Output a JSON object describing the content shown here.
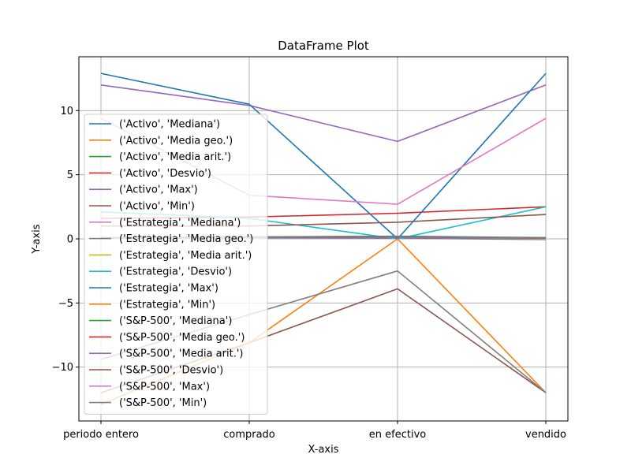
{
  "chart_data": {
    "type": "line",
    "title": "DataFrame Plot",
    "xlabel": "X-axis",
    "ylabel": "Y-axis",
    "categories": [
      "periodo entero",
      "comprado",
      "en efectivo",
      "vendido"
    ],
    "ylim": [
      -14.2,
      14.2
    ],
    "yticks": [
      -10,
      -5,
      0,
      5,
      10
    ],
    "ytick_labels": [
      "−10",
      "−5",
      "0",
      "5",
      "10"
    ],
    "grid": true,
    "legend_position": "center-left",
    "series": [
      {
        "name": "('Activo', 'Mediana')",
        "color": "#1f77b4",
        "values": [
          0.1,
          0.1,
          0.1,
          0.1
        ]
      },
      {
        "name": "('Activo', 'Media geo.')",
        "color": "#ff7f0e",
        "values": [
          0.05,
          0.1,
          0.1,
          0.0
        ]
      },
      {
        "name": "('Activo', 'Media arit.')",
        "color": "#2ca02c",
        "values": [
          0.1,
          0.15,
          0.15,
          0.05
        ]
      },
      {
        "name": "('Activo', 'Desvio')",
        "color": "#d62728",
        "values": [
          1.6,
          1.7,
          2.0,
          2.5
        ]
      },
      {
        "name": "('Activo', 'Max')",
        "color": "#9467bd",
        "values": [
          12.0,
          10.4,
          7.6,
          12.0
        ]
      },
      {
        "name": "('Activo', 'Min')",
        "color": "#8c564b",
        "values": [
          -12.0,
          -8.1,
          -3.9,
          -12.0
        ]
      },
      {
        "name": "('Estrategia', 'Mediana')",
        "color": "#e377c2",
        "values": [
          0.1,
          0.1,
          0.1,
          0.0
        ]
      },
      {
        "name": "('Estrategia', 'Media geo.')",
        "color": "#7f7f7f",
        "values": [
          0.05,
          0.1,
          0.05,
          -0.05
        ]
      },
      {
        "name": "('Estrategia', 'Media arit.')",
        "color": "#bcbd22",
        "values": [
          0.1,
          0.15,
          0.2,
          0.0
        ]
      },
      {
        "name": "('Estrategia', 'Desvio')",
        "color": "#17becf",
        "values": [
          2.1,
          1.6,
          0.0,
          2.5
        ]
      },
      {
        "name": "('Estrategia', 'Max')",
        "color": "#1f77b4",
        "values": [
          12.9,
          10.5,
          0.0,
          12.9
        ]
      },
      {
        "name": "('Estrategia', 'Min')",
        "color": "#ff7f0e",
        "values": [
          -12.9,
          -8.1,
          0.0,
          -12.0
        ]
      },
      {
        "name": "('S&P-500', 'Mediana')",
        "color": "#2ca02c",
        "values": [
          0.1,
          0.15,
          0.2,
          0.1
        ]
      },
      {
        "name": "('S&P-500', 'Media geo.')",
        "color": "#d62728",
        "values": [
          0.05,
          0.1,
          0.15,
          0.05
        ]
      },
      {
        "name": "('S&P-500', 'Media arit.')",
        "color": "#9467bd",
        "values": [
          0.05,
          0.1,
          0.15,
          0.05
        ]
      },
      {
        "name": "('S&P-500', 'Desvio')",
        "color": "#8c564b",
        "values": [
          1.0,
          1.0,
          1.3,
          1.9
        ]
      },
      {
        "name": "('S&P-500', 'Max')",
        "color": "#e377c2",
        "values": [
          9.4,
          3.4,
          2.7,
          9.4
        ]
      },
      {
        "name": "('S&P-500', 'Min')",
        "color": "#7f7f7f",
        "values": [
          -9.4,
          -5.9,
          -2.5,
          -12.0
        ]
      }
    ]
  }
}
